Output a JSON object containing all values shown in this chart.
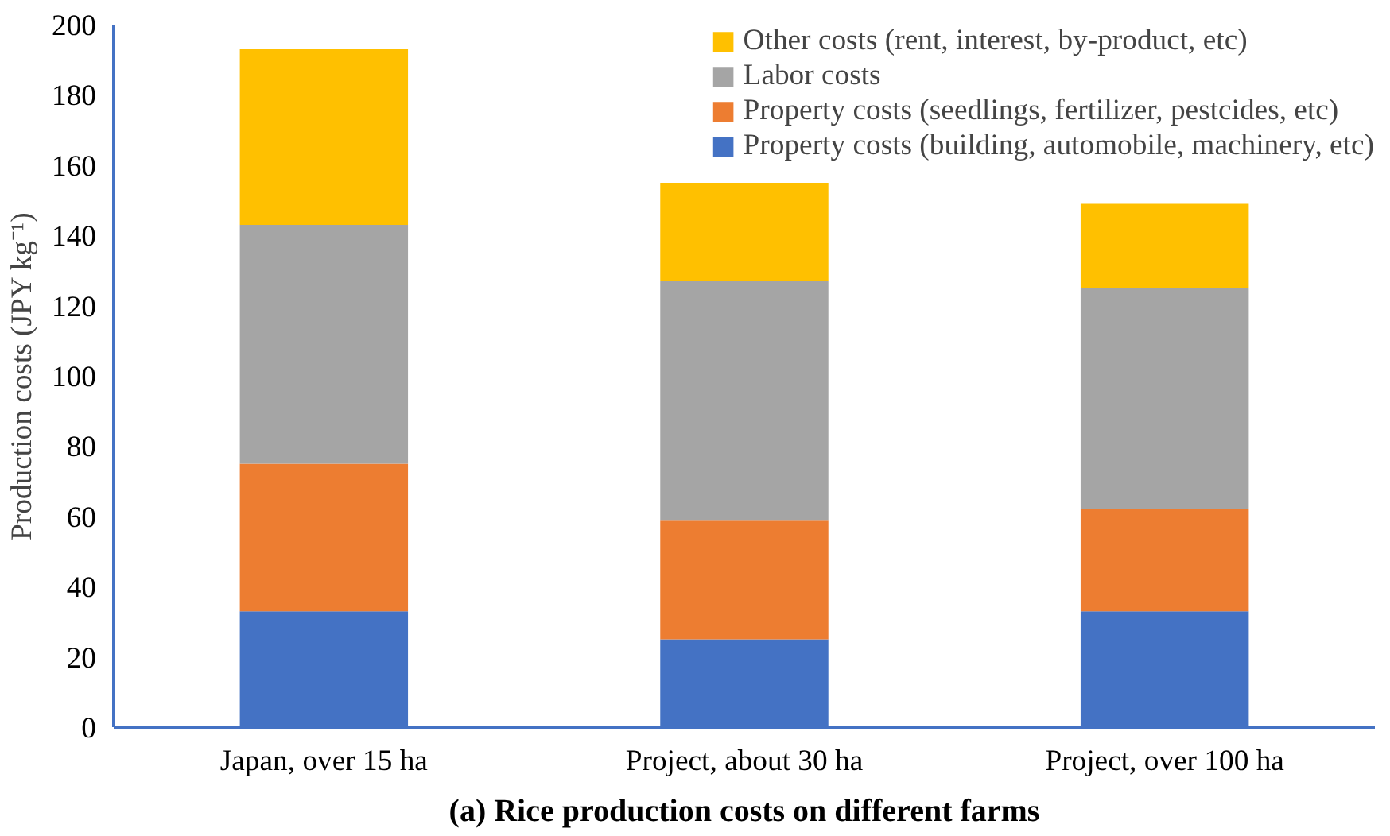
{
  "chart_data": {
    "type": "bar",
    "stacked": true,
    "title": "(a) Rice production costs on different farms",
    "ylabel": "Production costs (JPY kg⁻¹)",
    "categories": [
      "Japan, over 15 ha",
      "Project, about 30 ha",
      "Project, over 100 ha"
    ],
    "series": [
      {
        "name": "Property costs (building, automobile, machinery, etc)",
        "color": "#4472c4",
        "values": [
          33,
          25,
          33
        ]
      },
      {
        "name": "Property costs (seedlings, fertilizer, pestcides, etc)",
        "color": "#ed7d31",
        "values": [
          42,
          34,
          29
        ]
      },
      {
        "name": "Labor costs",
        "color": "#a5a5a5",
        "values": [
          68,
          68,
          63
        ]
      },
      {
        "name": "Other costs (rent, interest, by-product, etc)",
        "color": "#ffc000",
        "values": [
          50,
          28,
          24
        ]
      }
    ],
    "ylim": [
      0,
      200
    ],
    "yticks": [
      0,
      20,
      40,
      60,
      80,
      100,
      120,
      140,
      160,
      180,
      200
    ],
    "grid": false,
    "legend": "top right"
  }
}
